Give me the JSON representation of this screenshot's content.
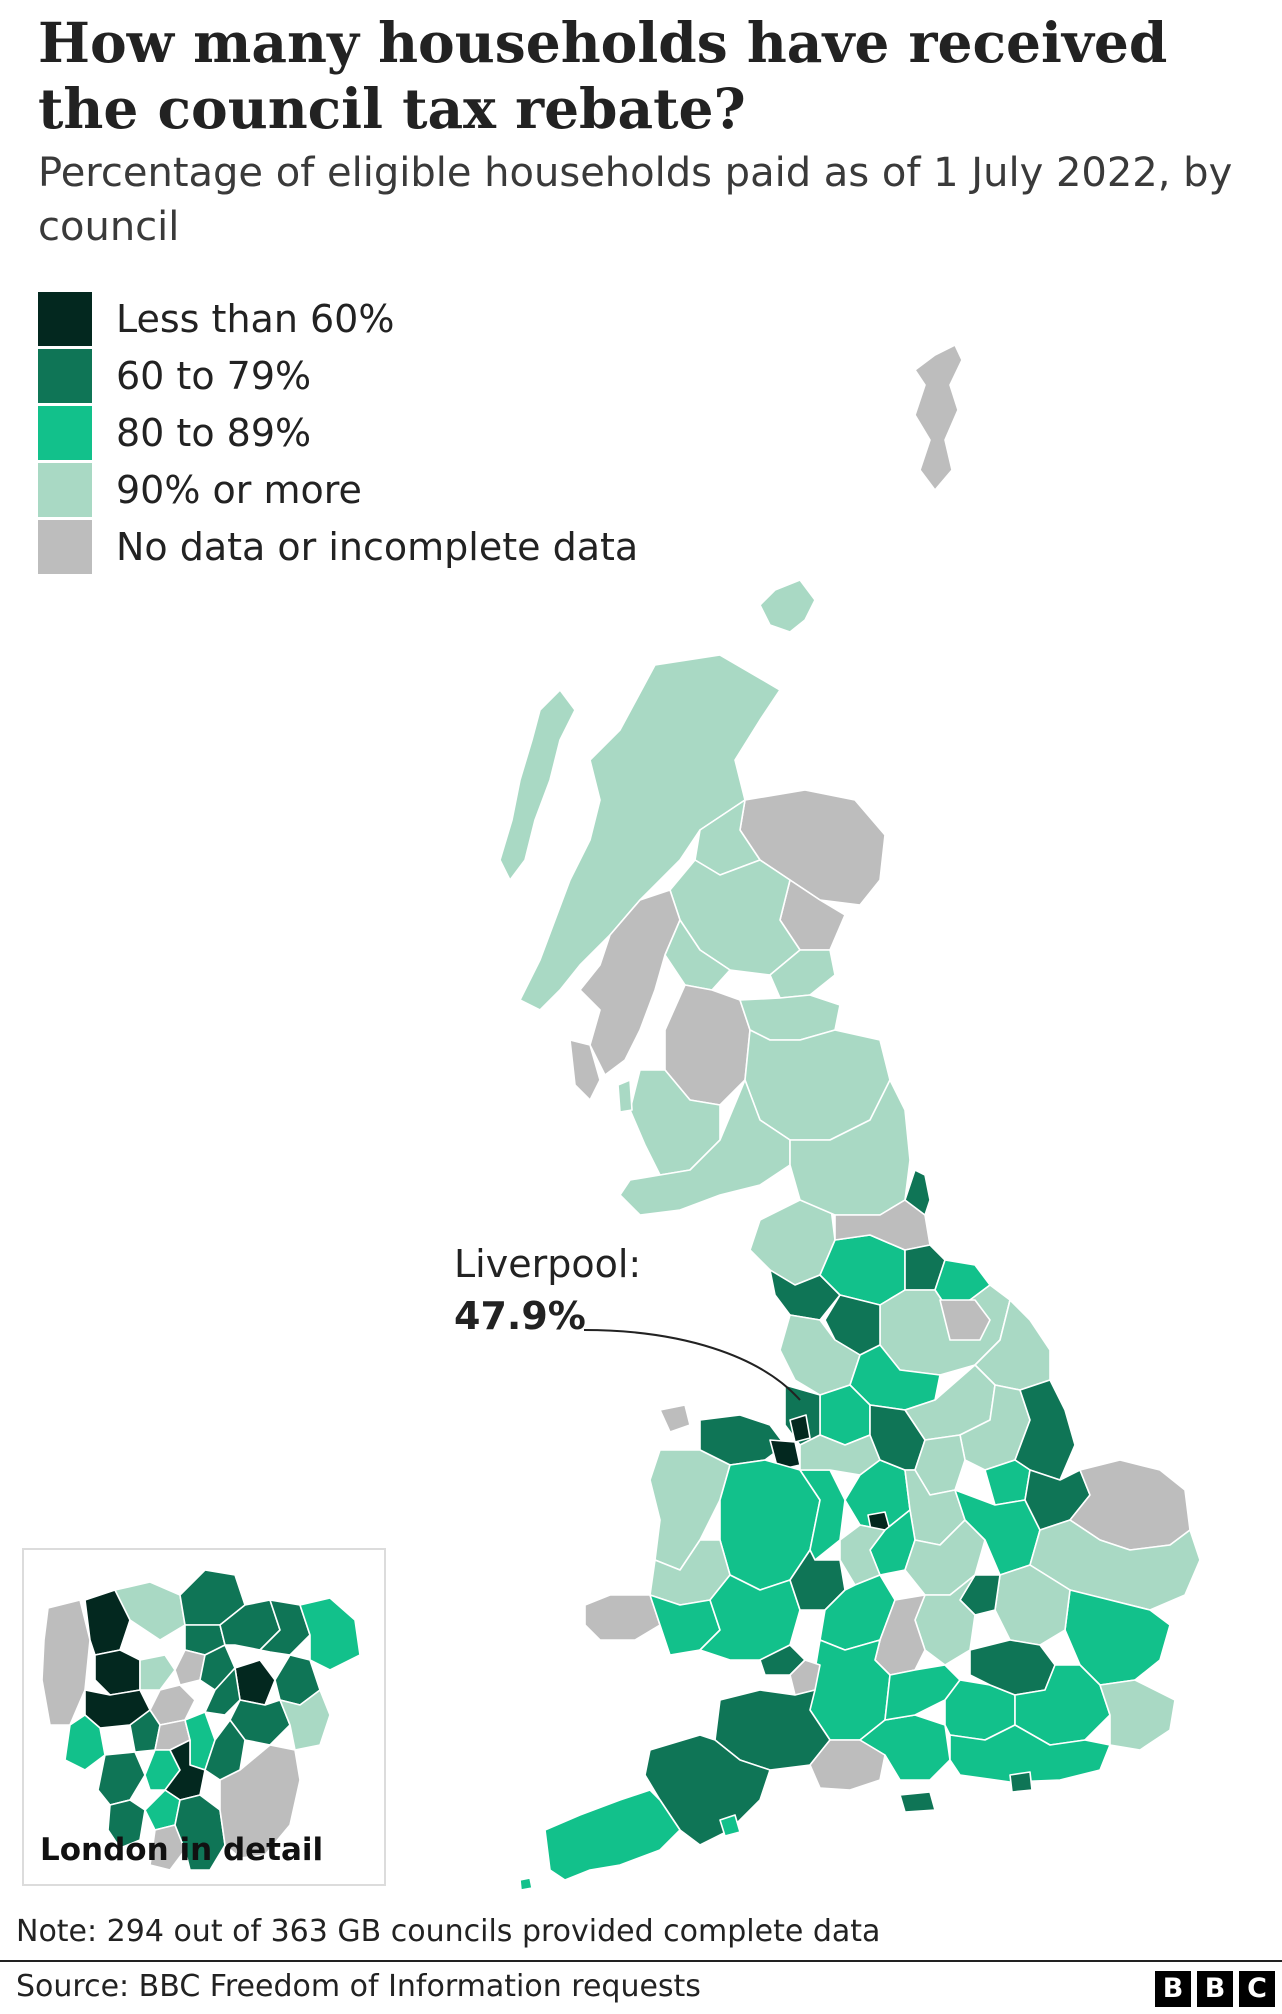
{
  "title": "How many households have received the council tax rebate?",
  "subtitle": "Percentage of eligible households paid as of 1 July 2022, by council",
  "legend": [
    {
      "label": "Less than 60%",
      "color": "#03281f"
    },
    {
      "label": "60 to 79%",
      "color": "#0f7556"
    },
    {
      "label": "80 to 89%",
      "color": "#12c18b"
    },
    {
      "label": "90% or more",
      "color": "#a9d9c4"
    },
    {
      "label": "No data or incomplete data",
      "color": "#bdbdbd"
    }
  ],
  "callout": {
    "label": "Liverpool:",
    "value": "47.9%"
  },
  "inset": {
    "label": "London in detail"
  },
  "note": "Note: 294 out of 363 GB councils provided complete data",
  "source": "Source: BBC Freedom of Information requests",
  "logo": {
    "letters": [
      "B",
      "B",
      "C"
    ]
  },
  "map": {
    "regions": [
      {
        "name": "shetland",
        "cat": 4
      },
      {
        "name": "orkney",
        "cat": 3
      },
      {
        "name": "western-isles",
        "cat": 3
      },
      {
        "name": "highland",
        "cat": 3
      },
      {
        "name": "aberdeenshire",
        "cat": 4
      },
      {
        "name": "moray",
        "cat": 3
      },
      {
        "name": "angus",
        "cat": 4
      },
      {
        "name": "perth-kinross",
        "cat": 3
      },
      {
        "name": "argyll-bute",
        "cat": 4
      },
      {
        "name": "stirling",
        "cat": 3
      },
      {
        "name": "fife",
        "cat": 3
      },
      {
        "name": "glasgow-area",
        "cat": 4
      },
      {
        "name": "lothian",
        "cat": 3
      },
      {
        "name": "scottish-borders",
        "cat": 3
      },
      {
        "name": "ayrshire",
        "cat": 3
      },
      {
        "name": "dumfries-galloway",
        "cat": 3
      },
      {
        "name": "islay-jura",
        "cat": 4
      },
      {
        "name": "arran",
        "cat": 3
      },
      {
        "name": "cumbria-west",
        "cat": 3
      },
      {
        "name": "cumbria-south",
        "cat": 1
      },
      {
        "name": "cumbria-east",
        "cat": 2
      },
      {
        "name": "northumberland",
        "cat": 3
      },
      {
        "name": "northumberland-south",
        "cat": 4
      },
      {
        "name": "tyne-wear",
        "cat": 1
      },
      {
        "name": "county-durham",
        "cat": 1
      },
      {
        "name": "teesside",
        "cat": 2
      },
      {
        "name": "north-yorkshire",
        "cat": 3
      },
      {
        "name": "yorkshire-dales",
        "cat": 1
      },
      {
        "name": "york",
        "cat": 4
      },
      {
        "name": "east-riding",
        "cat": 3
      },
      {
        "name": "lancashire",
        "cat": 3
      },
      {
        "name": "west-yorkshire",
        "cat": 2
      },
      {
        "name": "south-yorkshire",
        "cat": 3
      },
      {
        "name": "greater-manchester",
        "cat": 2
      },
      {
        "name": "merseyside",
        "cat": 1
      },
      {
        "name": "liverpool",
        "cat": 0
      },
      {
        "name": "lincolnshire-west",
        "cat": 3
      },
      {
        "name": "lincolnshire-east",
        "cat": 1
      },
      {
        "name": "lincolnshire-south",
        "cat": 2
      },
      {
        "name": "anglesey",
        "cat": 4
      },
      {
        "name": "north-wales",
        "cat": 1
      },
      {
        "name": "flintshire",
        "cat": 0
      },
      {
        "name": "gwynedd",
        "cat": 3
      },
      {
        "name": "powys",
        "cat": 2
      },
      {
        "name": "ceredigion",
        "cat": 3
      },
      {
        "name": "pembrokeshire",
        "cat": 4
      },
      {
        "name": "carmarthenshire",
        "cat": 2
      },
      {
        "name": "south-wales",
        "cat": 2
      },
      {
        "name": "cardiff",
        "cat": 1
      },
      {
        "name": "shropshire",
        "cat": 2
      },
      {
        "name": "herefordshire",
        "cat": 1
      },
      {
        "name": "cheshire",
        "cat": 3
      },
      {
        "name": "staffordshire",
        "cat": 2
      },
      {
        "name": "derbyshire",
        "cat": 1
      },
      {
        "name": "nottinghamshire",
        "cat": 3
      },
      {
        "name": "leicestershire",
        "cat": 3
      },
      {
        "name": "birmingham",
        "cat": 0
      },
      {
        "name": "warwickshire",
        "cat": 2
      },
      {
        "name": "worcestershire",
        "cat": 3
      },
      {
        "name": "gloucestershire",
        "cat": 2
      },
      {
        "name": "northamptonshire",
        "cat": 3
      },
      {
        "name": "cambridgeshire",
        "cat": 2
      },
      {
        "name": "norfolk-west",
        "cat": 1
      },
      {
        "name": "norfolk-east",
        "cat": 4
      },
      {
        "name": "suffolk",
        "cat": 3
      },
      {
        "name": "essex",
        "cat": 2
      },
      {
        "name": "hertfordshire",
        "cat": 3
      },
      {
        "name": "bedfordshire",
        "cat": 1
      },
      {
        "name": "buckinghamshire",
        "cat": 3
      },
      {
        "name": "oxfordshire",
        "cat": 4
      },
      {
        "name": "wiltshire",
        "cat": 2
      },
      {
        "name": "bristol",
        "cat": 4
      },
      {
        "name": "somerset",
        "cat": 1
      },
      {
        "name": "dorset",
        "cat": 4
      },
      {
        "name": "hampshire",
        "cat": 2
      },
      {
        "name": "isle-of-wight",
        "cat": 1
      },
      {
        "name": "berkshire",
        "cat": 2
      },
      {
        "name": "surrey",
        "cat": 2
      },
      {
        "name": "greater-london",
        "cat": 1
      },
      {
        "name": "kent",
        "cat": 2
      },
      {
        "name": "kent-east",
        "cat": 3
      },
      {
        "name": "sussex",
        "cat": 2
      },
      {
        "name": "brighton",
        "cat": 1
      },
      {
        "name": "devon",
        "cat": 1
      },
      {
        "name": "torbay",
        "cat": 2
      },
      {
        "name": "cornwall",
        "cat": 2
      },
      {
        "name": "scilly",
        "cat": 2
      }
    ],
    "london_boroughs": [
      {
        "name": "hillingdon",
        "cat": 4
      },
      {
        "name": "harrow",
        "cat": 0
      },
      {
        "name": "barnet",
        "cat": 3
      },
      {
        "name": "enfield",
        "cat": 1
      },
      {
        "name": "haringey",
        "cat": 1
      },
      {
        "name": "waltham-forest",
        "cat": 1
      },
      {
        "name": "redbridge",
        "cat": 1
      },
      {
        "name": "havering",
        "cat": 2
      },
      {
        "name": "brent",
        "cat": 0
      },
      {
        "name": "camden",
        "cat": 3
      },
      {
        "name": "islington",
        "cat": 4
      },
      {
        "name": "hackney",
        "cat": 1
      },
      {
        "name": "newham",
        "cat": 0
      },
      {
        "name": "barking",
        "cat": 1
      },
      {
        "name": "ealing",
        "cat": 0
      },
      {
        "name": "westminster",
        "cat": 4
      },
      {
        "name": "tower-hamlets",
        "cat": 1
      },
      {
        "name": "hounslow",
        "cat": 2
      },
      {
        "name": "hammersmith",
        "cat": 1
      },
      {
        "name": "kensington",
        "cat": 4
      },
      {
        "name": "southwark",
        "cat": 2
      },
      {
        "name": "greenwich",
        "cat": 1
      },
      {
        "name": "bexley",
        "cat": 3
      },
      {
        "name": "richmond",
        "cat": 1
      },
      {
        "name": "wandsworth",
        "cat": 2
      },
      {
        "name": "lambeth",
        "cat": 0
      },
      {
        "name": "lewisham",
        "cat": 1
      },
      {
        "name": "kingston",
        "cat": 1
      },
      {
        "name": "merton",
        "cat": 2
      },
      {
        "name": "sutton",
        "cat": 4
      },
      {
        "name": "croydon",
        "cat": 1
      },
      {
        "name": "bromley",
        "cat": 4
      }
    ]
  }
}
